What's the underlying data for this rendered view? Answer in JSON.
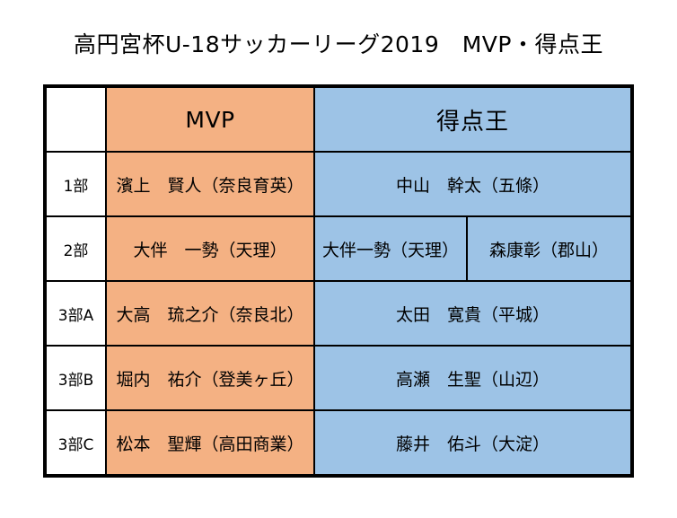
{
  "title": "高円宮杯U-18サッカーリーグ2019　MVP・得点王",
  "headers": {
    "mvp": "MVP",
    "scorer": "得点王"
  },
  "rows": [
    {
      "division": "1部",
      "mvp": "濱上　賢人（奈良育英）",
      "scorers": [
        "中山　幹太（五條）"
      ]
    },
    {
      "division": "2部",
      "mvp": "大伴　一勢（天理）",
      "scorers": [
        "大伴一勢（天理）",
        "森康彰（郡山）"
      ]
    },
    {
      "division": "3部A",
      "mvp": "大高　琉之介（奈良北）",
      "scorers": [
        "太田　寛貴（平城）"
      ]
    },
    {
      "division": "3部B",
      "mvp": "堀内　祐介（登美ヶ丘）",
      "scorers": [
        "高瀬　生聖（山辺）"
      ]
    },
    {
      "division": "3部C",
      "mvp": "松本　聖輝（高田商業）",
      "scorers": [
        "藤井　佑斗（大淀）"
      ]
    }
  ],
  "colors": {
    "mvp_fill": "#f4b183",
    "scorer_fill": "#9dc3e6",
    "border": "#000000"
  }
}
